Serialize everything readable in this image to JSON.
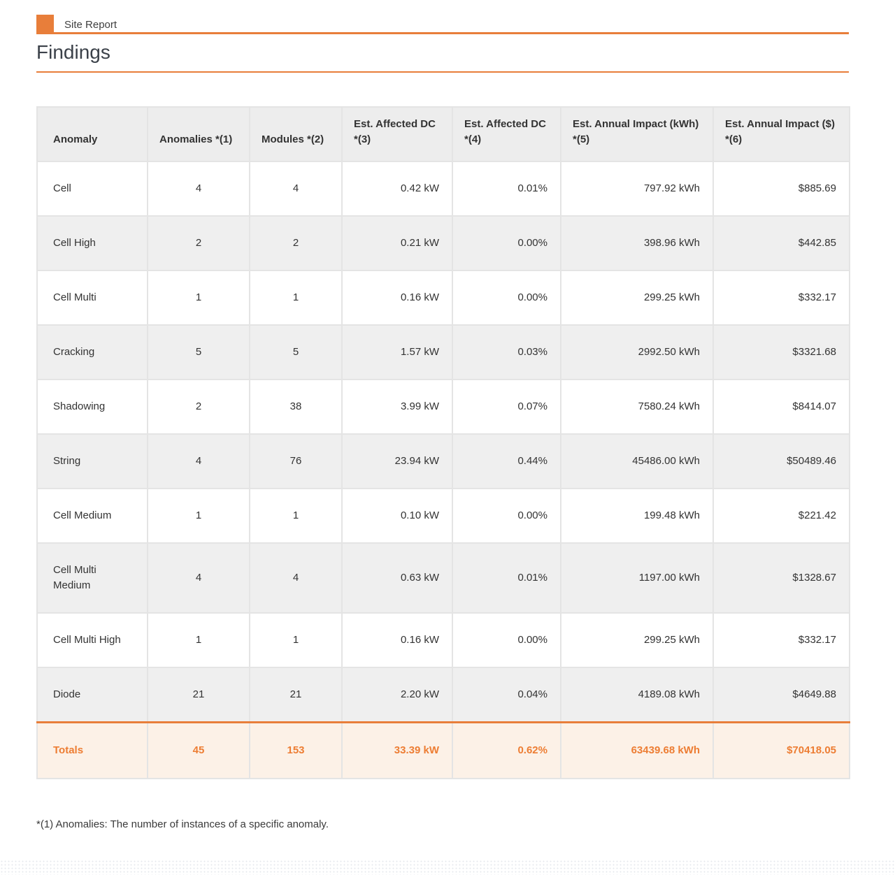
{
  "accent_color": "#E87E3A",
  "report": {
    "badge_label": "Site Report",
    "section_title": "Findings"
  },
  "table": {
    "columns": [
      {
        "label": "Anomaly"
      },
      {
        "label": "Anomalies *(1)"
      },
      {
        "label": "Modules *(2)"
      },
      {
        "label": "Est. Affected DC *(3)"
      },
      {
        "label": "Est. Affected DC *(4)"
      },
      {
        "label": "Est. Annual Impact (kWh) *(5)"
      },
      {
        "label": "Est. Annual Impact ($) *(6)"
      }
    ],
    "rows": [
      {
        "anomaly": "Cell",
        "anomalies": "4",
        "modules": "4",
        "affected_dc_kw": "0.42 kW",
        "affected_dc_pct": "0.01%",
        "annual_impact_kwh": "797.92 kWh",
        "annual_impact_usd": "$885.69"
      },
      {
        "anomaly": "Cell High",
        "anomalies": "2",
        "modules": "2",
        "affected_dc_kw": "0.21 kW",
        "affected_dc_pct": "0.00%",
        "annual_impact_kwh": "398.96 kWh",
        "annual_impact_usd": "$442.85"
      },
      {
        "anomaly": "Cell Multi",
        "anomalies": "1",
        "modules": "1",
        "affected_dc_kw": "0.16 kW",
        "affected_dc_pct": "0.00%",
        "annual_impact_kwh": "299.25 kWh",
        "annual_impact_usd": "$332.17"
      },
      {
        "anomaly": "Cracking",
        "anomalies": "5",
        "modules": "5",
        "affected_dc_kw": "1.57 kW",
        "affected_dc_pct": "0.03%",
        "annual_impact_kwh": "2992.50 kWh",
        "annual_impact_usd": "$3321.68"
      },
      {
        "anomaly": "Shadowing",
        "anomalies": "2",
        "modules": "38",
        "affected_dc_kw": "3.99 kW",
        "affected_dc_pct": "0.07%",
        "annual_impact_kwh": "7580.24 kWh",
        "annual_impact_usd": "$8414.07"
      },
      {
        "anomaly": "String",
        "anomalies": "4",
        "modules": "76",
        "affected_dc_kw": "23.94 kW",
        "affected_dc_pct": "0.44%",
        "annual_impact_kwh": "45486.00 kWh",
        "annual_impact_usd": "$50489.46"
      },
      {
        "anomaly": "Cell Medium",
        "anomalies": "1",
        "modules": "1",
        "affected_dc_kw": "0.10 kW",
        "affected_dc_pct": "0.00%",
        "annual_impact_kwh": "199.48 kWh",
        "annual_impact_usd": "$221.42"
      },
      {
        "anomaly": "Cell Multi Medium",
        "anomalies": "4",
        "modules": "4",
        "affected_dc_kw": "0.63 kW",
        "affected_dc_pct": "0.01%",
        "annual_impact_kwh": "1197.00 kWh",
        "annual_impact_usd": "$1328.67"
      },
      {
        "anomaly": "Cell Multi High",
        "anomalies": "1",
        "modules": "1",
        "affected_dc_kw": "0.16 kW",
        "affected_dc_pct": "0.00%",
        "annual_impact_kwh": "299.25 kWh",
        "annual_impact_usd": "$332.17"
      },
      {
        "anomaly": "Diode",
        "anomalies": "21",
        "modules": "21",
        "affected_dc_kw": "2.20 kW",
        "affected_dc_pct": "0.04%",
        "annual_impact_kwh": "4189.08 kWh",
        "annual_impact_usd": "$4649.88"
      }
    ],
    "totals": {
      "anomaly": "Totals",
      "anomalies": "45",
      "modules": "153",
      "affected_dc_kw": "33.39 kW",
      "affected_dc_pct": "0.62%",
      "annual_impact_kwh": "63439.68 kWh",
      "annual_impact_usd": "$70418.05"
    }
  },
  "footnote": "*(1) Anomalies: The number of instances of a specific anomaly."
}
